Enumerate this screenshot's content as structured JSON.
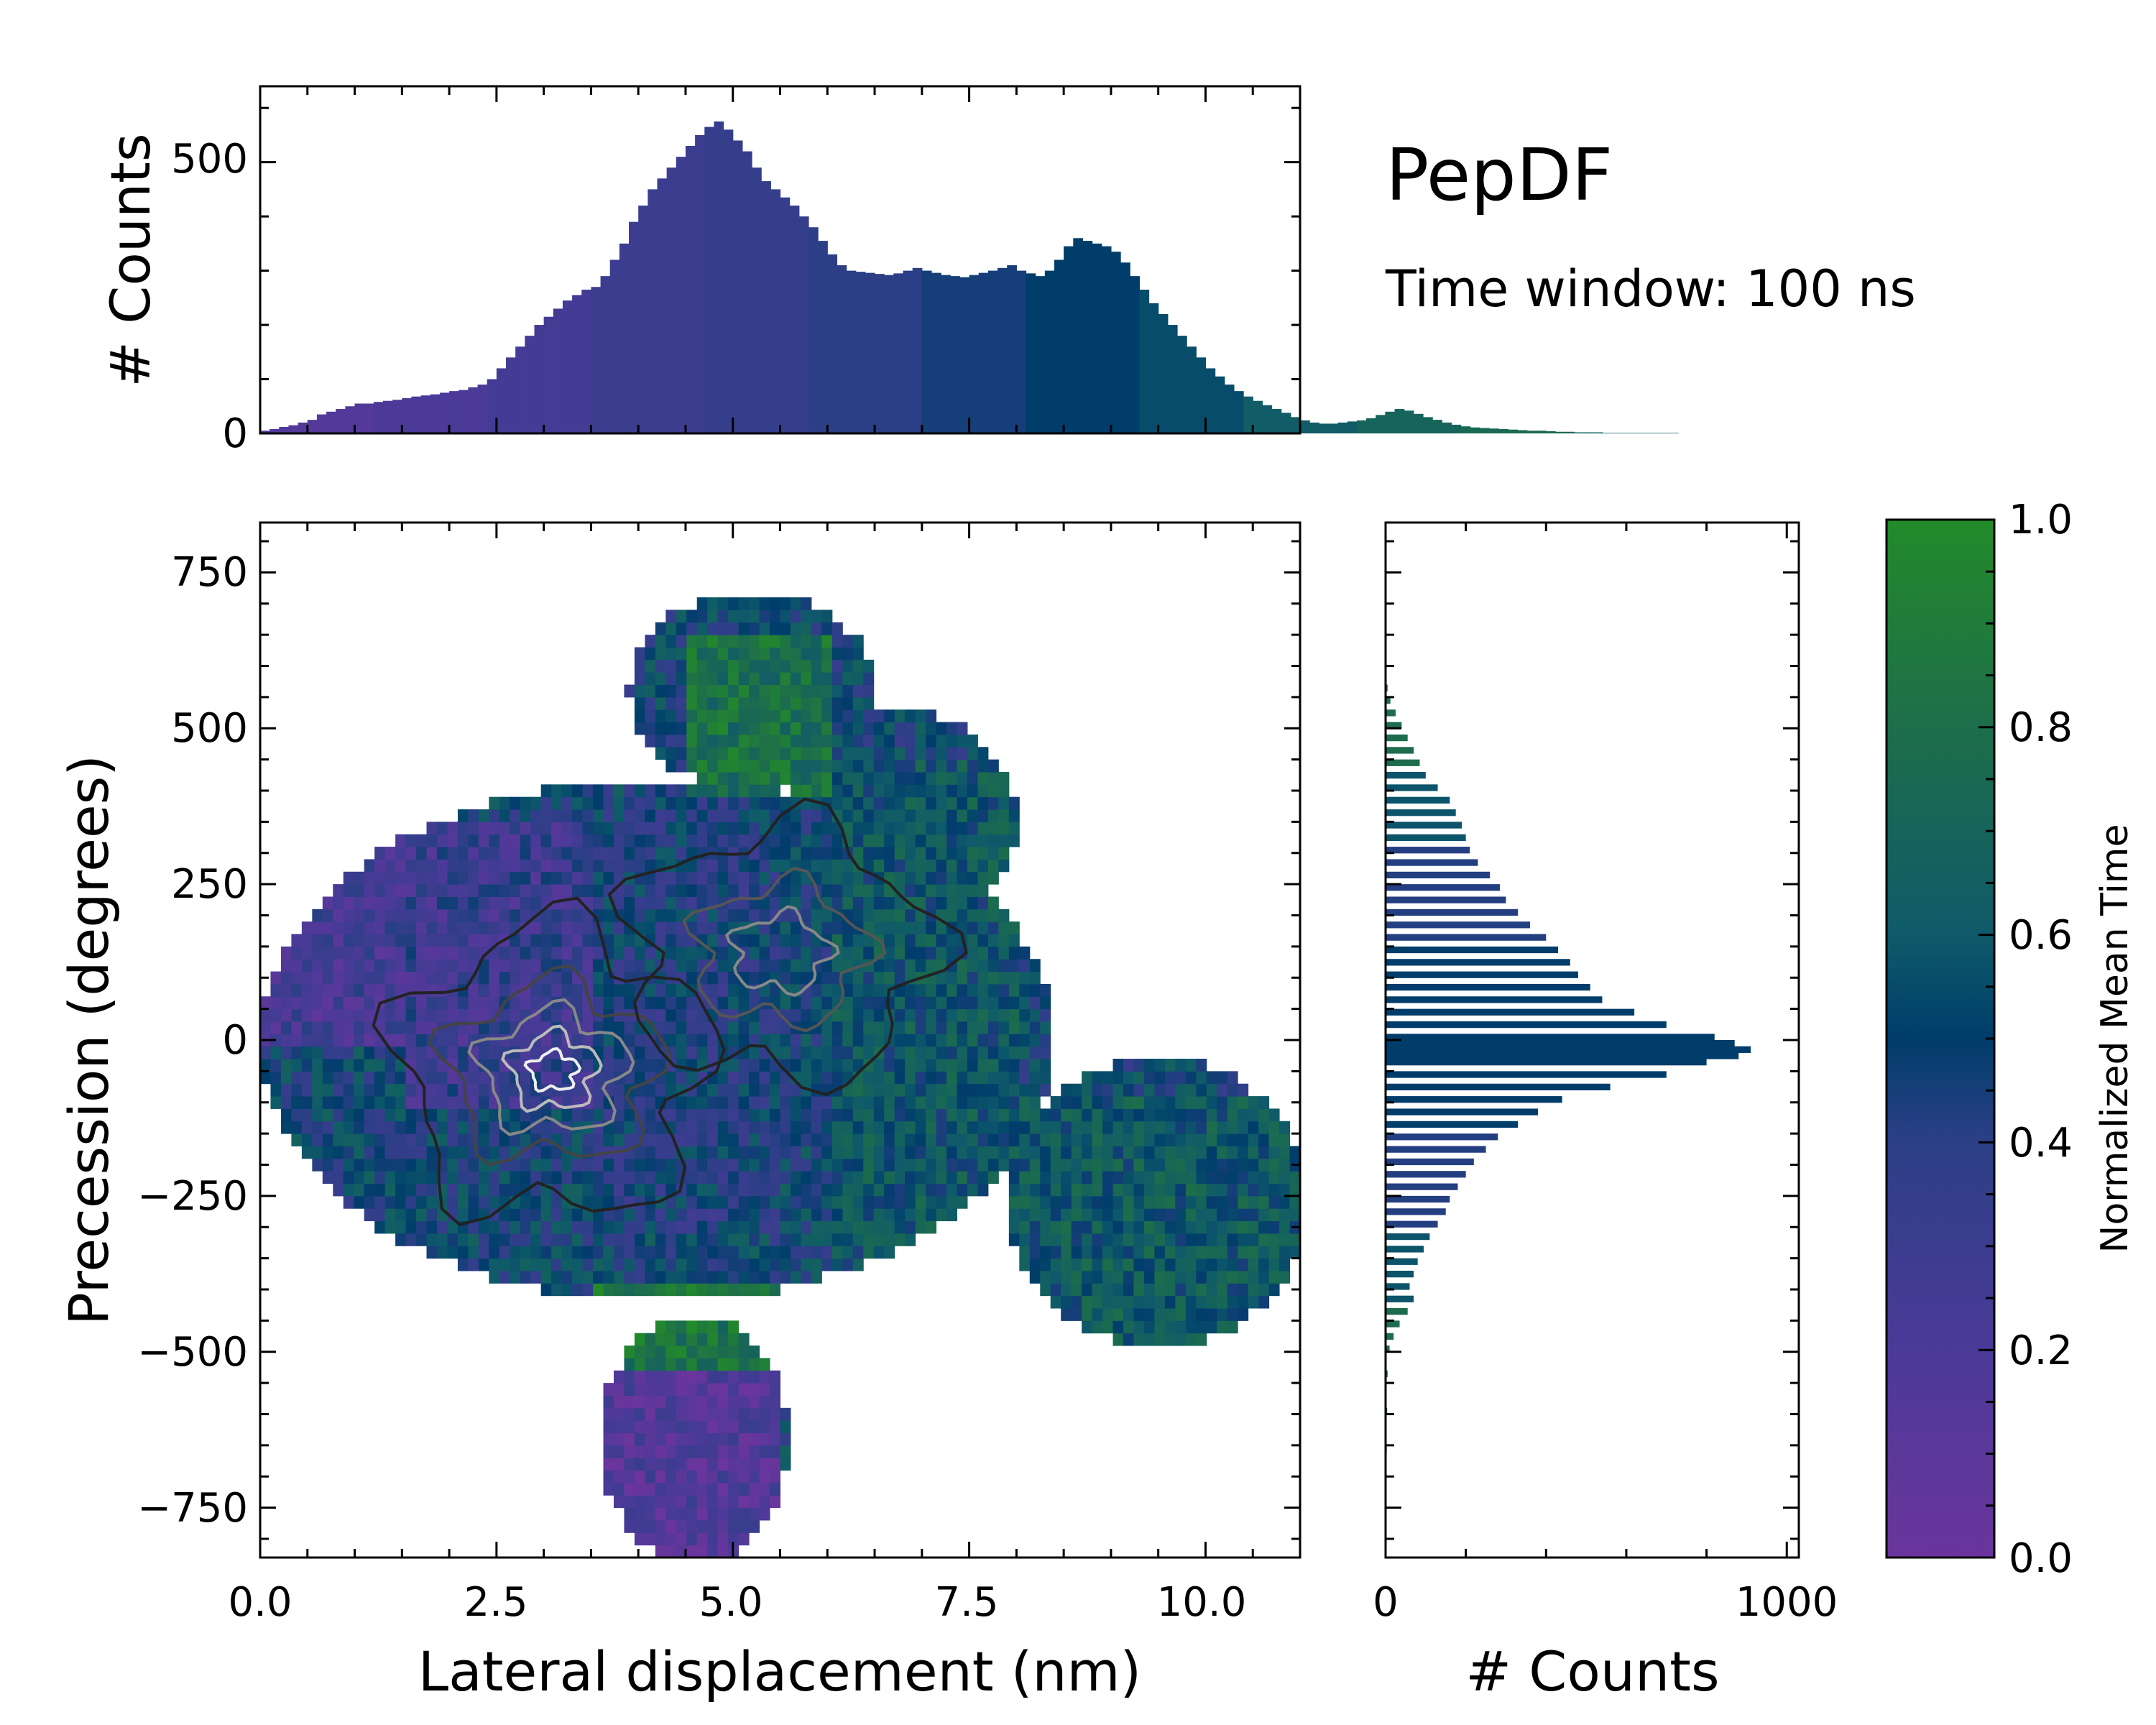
{
  "title": "PepDF",
  "subtitle": "Time window: 100 ns",
  "colors": {
    "cmap_0": "#6a359c",
    "cmap_0_2": "#4b3a98",
    "cmap_0_4": "#2c3f86",
    "cmap_0_5": "#003d6b",
    "cmap_0_6": "#0f5a6a",
    "cmap_0_8": "#1d6e4a",
    "cmap_1": "#238a2a"
  },
  "chart_data": [
    {
      "id": "main",
      "type": "heatmap",
      "xlabel": "Lateral displacement (nm)",
      "ylabel": "Precession (degrees)",
      "xlim": [
        0.0,
        11.0
      ],
      "ylim": [
        -830,
        830
      ],
      "xticks": [
        "0.0",
        "2.5",
        "5.0",
        "7.5",
        "10.0"
      ],
      "xtick_values": [
        0.0,
        2.5,
        5.0,
        7.5,
        10.0
      ],
      "yticks": [
        "−750",
        "−500",
        "−250",
        "0",
        "250",
        "500",
        "750"
      ],
      "ytick_values": [
        -750,
        -500,
        -250,
        0,
        250,
        500,
        750
      ],
      "colorbar_label": "Normalized Mean Time",
      "color_range": [
        0.0,
        1.0
      ],
      "density_peaks": [
        {
          "x": 3.1,
          "y": -50,
          "note": "primary density maximum"
        },
        {
          "x": 5.5,
          "y": 140,
          "note": "secondary density maximum"
        }
      ],
      "regions": [
        {
          "x": [
            0.0,
            1.5
          ],
          "y": [
            0,
            380
          ],
          "value": 0.25
        },
        {
          "x": [
            1.5,
            3.5
          ],
          "y": [
            -100,
            350
          ],
          "value": 0.3
        },
        {
          "x": [
            3.5,
            5.5
          ],
          "y": [
            -300,
            400
          ],
          "value": 0.45
        },
        {
          "x": [
            4.5,
            6.0
          ],
          "y": [
            400,
            650
          ],
          "value": 0.8
        },
        {
          "x": [
            6.0,
            8.0
          ],
          "y": [
            -400,
            450
          ],
          "value": 0.6
        },
        {
          "x": [
            8.0,
            11.0
          ],
          "y": [
            -480,
            -90
          ],
          "value": 0.62
        },
        {
          "x": [
            3.5,
            6.5
          ],
          "y": [
            -520,
            -380
          ],
          "value": 0.85
        },
        {
          "x": [
            3.5,
            5.5
          ],
          "y": [
            -830,
            -520
          ],
          "value": 0.15
        }
      ]
    },
    {
      "id": "top_histogram",
      "type": "bar",
      "ylabel": "# Counts",
      "xlim": [
        0.0,
        11.0
      ],
      "ylim": [
        0,
        640
      ],
      "yticks": [
        "0",
        "500"
      ],
      "ytick_values": [
        0,
        500
      ],
      "bin_width": 0.1,
      "values": [
        5,
        8,
        12,
        15,
        20,
        25,
        35,
        40,
        45,
        50,
        55,
        55,
        58,
        60,
        62,
        65,
        68,
        70,
        72,
        75,
        78,
        80,
        85,
        90,
        100,
        120,
        140,
        160,
        180,
        200,
        215,
        230,
        245,
        255,
        265,
        270,
        290,
        320,
        350,
        390,
        420,
        450,
        470,
        490,
        510,
        530,
        550,
        565,
        575,
        560,
        540,
        520,
        490,
        465,
        450,
        435,
        420,
        400,
        380,
        355,
        330,
        310,
        300,
        298,
        296,
        294,
        292,
        295,
        300,
        305,
        300,
        296,
        292,
        290,
        288,
        292,
        296,
        300,
        305,
        310,
        300,
        295,
        290,
        300,
        320,
        345,
        360,
        355,
        350,
        345,
        335,
        315,
        290,
        265,
        240,
        220,
        200,
        180,
        160,
        140,
        120,
        105,
        90,
        78,
        68,
        60,
        52,
        45,
        38,
        30,
        24,
        20,
        18,
        18,
        20,
        22,
        24,
        28,
        34,
        40,
        45,
        42,
        36,
        30,
        25,
        20,
        16,
        13,
        11,
        10,
        9,
        8,
        7,
        6,
        5,
        5,
        4,
        3,
        3,
        2,
        2,
        2,
        1,
        1,
        1,
        1,
        1,
        1,
        1,
        1
      ],
      "bin_colors": [
        0.15,
        0.2,
        0.25,
        0.3,
        0.35,
        0.4,
        0.45,
        0.5,
        0.55,
        0.62,
        0.7,
        0.75,
        0.65
      ]
    },
    {
      "id": "right_histogram",
      "type": "bar",
      "orientation": "horizontal",
      "xlabel": "# Counts",
      "xlim": [
        0,
        1030
      ],
      "ylim": [
        -830,
        830
      ],
      "xticks": [
        "0",
        "1000"
      ],
      "xtick_values": [
        0,
        1000
      ],
      "bin_width_degrees": 10,
      "bins": [
        [
          560,
          5
        ],
        [
          540,
          12
        ],
        [
          520,
          25
        ],
        [
          500,
          40
        ],
        [
          480,
          55
        ],
        [
          460,
          70
        ],
        [
          440,
          85
        ],
        [
          420,
          100
        ],
        [
          400,
          130
        ],
        [
          380,
          160
        ],
        [
          360,
          175
        ],
        [
          340,
          190
        ],
        [
          320,
          200
        ],
        [
          300,
          210
        ],
        [
          280,
          230
        ],
        [
          260,
          260
        ],
        [
          240,
          285
        ],
        [
          220,
          300
        ],
        [
          200,
          330
        ],
        [
          180,
          360
        ],
        [
          160,
          400
        ],
        [
          140,
          430
        ],
        [
          120,
          460
        ],
        [
          100,
          480
        ],
        [
          80,
          510
        ],
        [
          60,
          540
        ],
        [
          40,
          620
        ],
        [
          20,
          700
        ],
        [
          0,
          820
        ],
        [
          -10,
          870
        ],
        [
          -20,
          910
        ],
        [
          -30,
          880
        ],
        [
          -40,
          800
        ],
        [
          -60,
          700
        ],
        [
          -80,
          560
        ],
        [
          -100,
          440
        ],
        [
          -120,
          380
        ],
        [
          -140,
          330
        ],
        [
          -160,
          280
        ],
        [
          -180,
          250
        ],
        [
          -200,
          220
        ],
        [
          -220,
          200
        ],
        [
          -240,
          180
        ],
        [
          -260,
          160
        ],
        [
          -280,
          150
        ],
        [
          -300,
          130
        ],
        [
          -320,
          110
        ],
        [
          -340,
          95
        ],
        [
          -360,
          80
        ],
        [
          -380,
          70
        ],
        [
          -400,
          60
        ],
        [
          -420,
          70
        ],
        [
          -440,
          55
        ],
        [
          -460,
          35
        ],
        [
          -480,
          20
        ],
        [
          -500,
          10
        ],
        [
          -540,
          5
        ],
        [
          -600,
          4
        ],
        [
          -660,
          3
        ],
        [
          -750,
          2
        ]
      ]
    },
    {
      "id": "colorbar",
      "type": "heatmap",
      "ylabel": "Normalized Mean Time",
      "ylim": [
        0.0,
        1.0
      ],
      "yticks": [
        "0.0",
        "0.2",
        "0.4",
        "0.6",
        "0.8",
        "1.0"
      ],
      "ytick_values": [
        0.0,
        0.2,
        0.4,
        0.6,
        0.8,
        1.0
      ]
    }
  ]
}
